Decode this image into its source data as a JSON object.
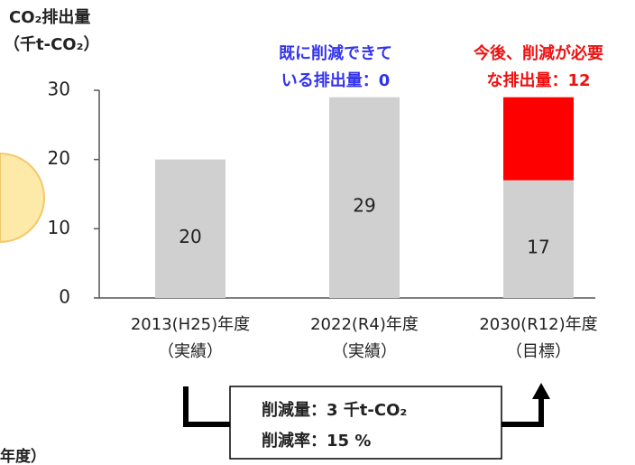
{
  "chart_data": {
    "type": "stacked_bar",
    "y_label": [
      "CO₂排出量",
      "（千t-CO₂）"
    ],
    "categories": [
      [
        "2013(H25)年度",
        "（実績）"
      ],
      [
        "2022(R4)年度",
        "（実績）"
      ],
      [
        "2030(R12)年度",
        "（目標）"
      ]
    ],
    "series": [
      {
        "color": "#d0d0d0",
        "values": [
          20,
          29,
          17
        ],
        "show_labels": true
      },
      {
        "color": "#ff0000",
        "values": [
          0,
          0,
          12
        ],
        "show_labels": false
      }
    ],
    "ylim": [
      0,
      30
    ],
    "yticks": [
      0,
      10,
      20,
      30
    ],
    "grid": false,
    "annotations": {
      "achieved": {
        "lines": [
          "既に削減できて",
          "いる排出量：0"
        ],
        "color": "#3333ee"
      },
      "needed": {
        "lines": [
          "今後、削減が必要",
          "な排出量：12"
        ],
        "color": "#ee1111"
      },
      "box": [
        "削減量：3 千t-CO₂",
        "削減率：15 %"
      ],
      "cropped": "年度）"
    }
  }
}
